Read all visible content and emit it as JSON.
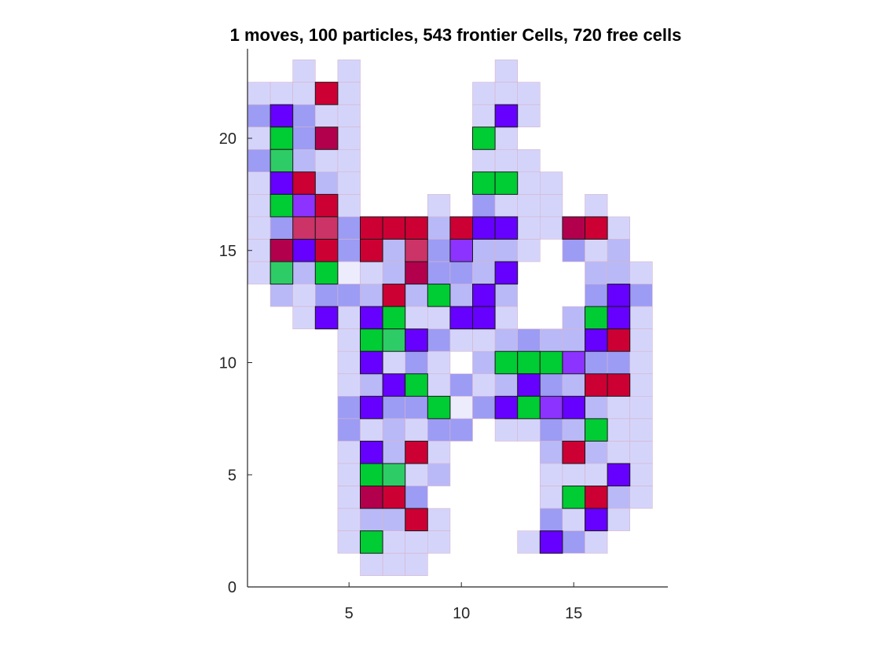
{
  "chart_data": {
    "type": "heatmap",
    "title": "1 moves, 100 particles, 543 frontier Cells, 720 free cells",
    "xlabel": "",
    "ylabel": "",
    "xlim": [
      0.5,
      19
    ],
    "ylim": [
      0,
      24
    ],
    "xticks": [
      5,
      10,
      15
    ],
    "yticks": [
      0,
      5,
      10,
      15,
      20
    ],
    "grid": false,
    "palette": {
      "L": "#d4d4fb",
      "M": "#b9b9f8",
      "D": "#9c9cf5",
      "W": "#ececfd",
      "B": "#6600ff",
      "P": "#8c33ff",
      "G": "#00cc33",
      "g": "#2ecc66",
      "R": "#cc0033",
      "r": "#b2004c",
      "s": "#cc3366"
    },
    "outlined_levels": [
      "B",
      "P",
      "G",
      "g",
      "R",
      "r",
      "s"
    ],
    "rows_y_from": 23,
    "x_from": 1,
    "cells": [
      ". . L . L . . . . . . L . . . . . .",
      "L L L R L . . . . . L L L . . . . .",
      "D B D L L . . . . . L B L . . . . .",
      "L G D r L . . . . . G L . . . . . .",
      "D g M L L . . . . . L L L . . . . .",
      "L B R M L . . . . . G G L L . . . .",
      "L G P R L . . . L . D L L L . L . .",
      "L D s s D R R R M R B B L L r R L .",
      "L r B R D R M s D P M M L . D L M .",
      "L g M G W L M r D D M B . . . M M L",
      ". M L D D M R M G M B M . . . D B D",
      ". . L B L B G L L B B L . . M G B L",
      ". . . . L G g B D L L M D M M B R L",
      ". . . . L B L D L . M G G G P D D L",
      ". . . . L M B G L D L M B D M R R L",
      ". . . . D B D D G W D B G P B M L L",
      ". . . . D L M L D D . L L D M G L L",
      ". . . . L B M R L . . . . M R M L L",
      ". . . . L G g L M . . . . L L L B L",
      ". . . . L r R D . . . . . L G R M L",
      ". . . . L M M R L . . . . D L B L .",
      ". . . . L G L L L . . . L B D L . .",
      ". . . . . L L L . . . . . . . . . ."
    ]
  }
}
